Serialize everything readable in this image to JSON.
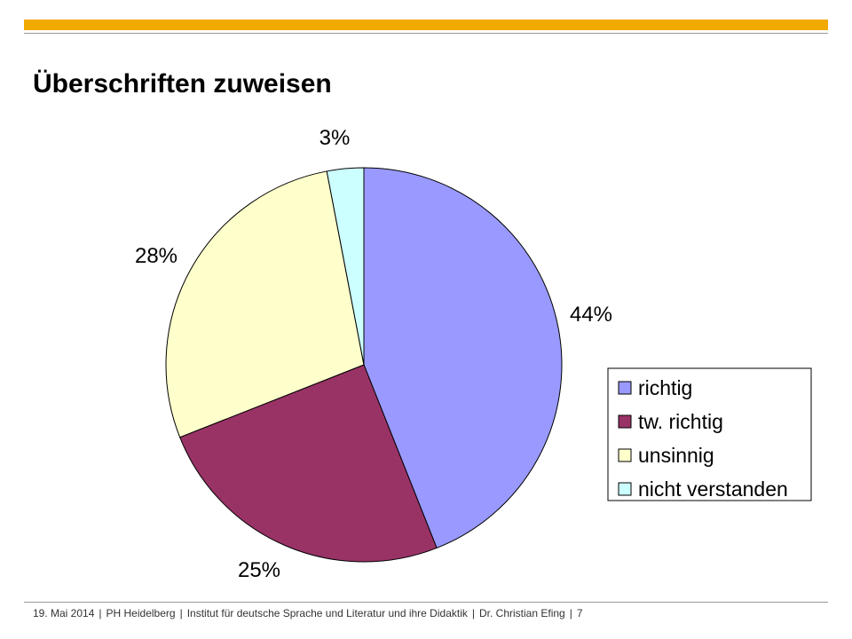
{
  "slide": {
    "title": "Überschriften zuweisen",
    "accent_color": "#f2a900"
  },
  "chart_data": {
    "type": "pie",
    "title": "Überschriften zuweisen",
    "legend_position": "right",
    "slices": [
      {
        "label": "richtig",
        "value": 44,
        "display": "44%",
        "color": "#9999ff"
      },
      {
        "label": "tw. richtig",
        "value": 25,
        "display": "25%",
        "color": "#993366"
      },
      {
        "label": "unsinnig",
        "value": 28,
        "display": "28%",
        "color": "#ffffcc"
      },
      {
        "label": "nicht verstanden",
        "value": 3,
        "display": "3%",
        "color": "#ccffff"
      }
    ]
  },
  "footer": {
    "date": "19. Mai 2014",
    "org": "PH Heidelberg",
    "institute": "Institut für deutsche Sprache und Literatur und ihre Didaktik",
    "author": "Dr. Christian Efing",
    "page": "7",
    "separator": "|"
  }
}
